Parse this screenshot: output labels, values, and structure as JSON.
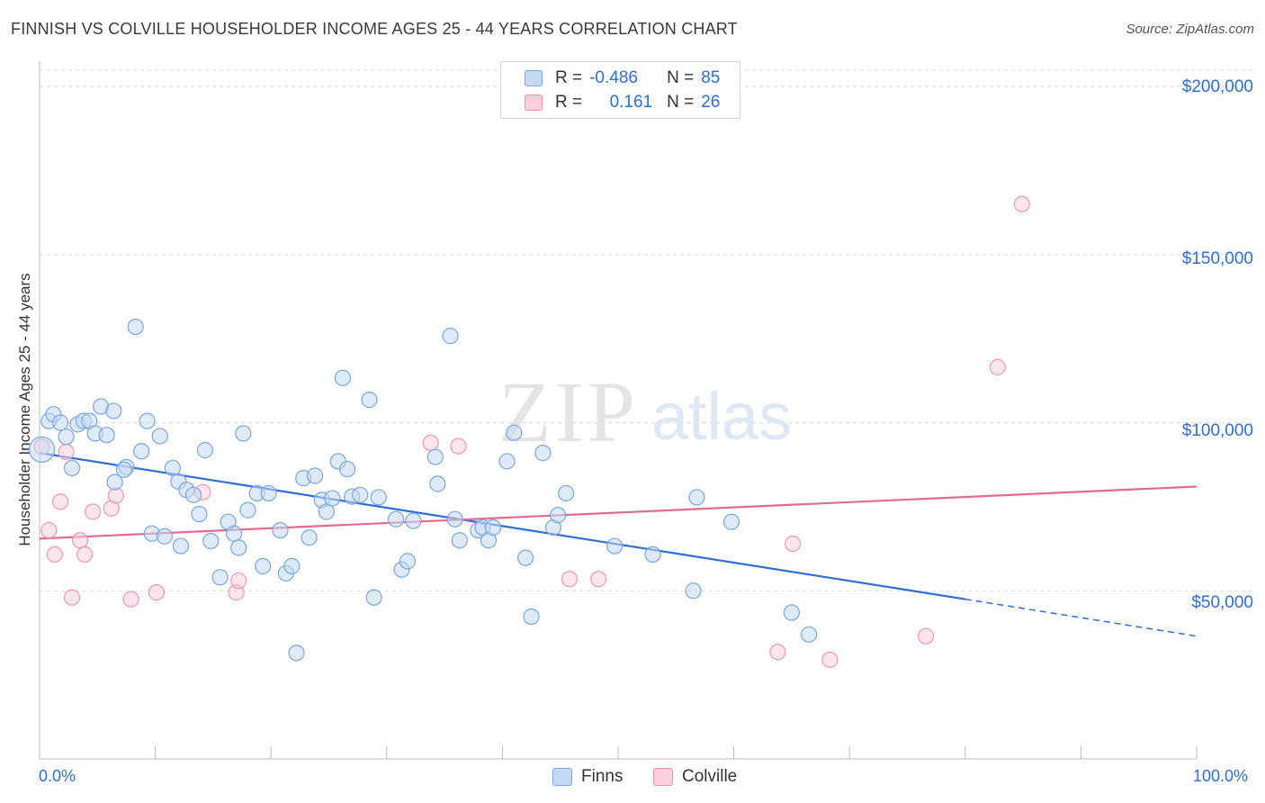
{
  "title": "FINNISH VS COLVILLE HOUSEHOLDER INCOME AGES 25 - 44 YEARS CORRELATION CHART",
  "source": "Source: ZipAtlas.com",
  "watermark": {
    "zip": "ZIP",
    "atlas": "atlas"
  },
  "legend": {
    "rows": [
      {
        "r_label": "R =",
        "r_value": "-0.486",
        "n_label": "N =",
        "n_value": "85"
      },
      {
        "r_label": "R =",
        "r_value": "0.161",
        "n_label": "N =",
        "n_value": "26"
      }
    ]
  },
  "chart_data": {
    "type": "scatter",
    "title": "FINNISH VS COLVILLE HOUSEHOLDER INCOME AGES 25 - 44 YEARS CORRELATION CHART",
    "xlabel": "",
    "ylabel": "Householder Income Ages 25 - 44 years",
    "xlim": [
      0,
      100
    ],
    "ylim": [
      0,
      200000
    ],
    "x_tick_labels": [
      "0.0%",
      "100.0%"
    ],
    "y_ticks": [
      50000,
      100000,
      150000,
      200000
    ],
    "y_tick_labels": [
      "$50,000",
      "$100,000",
      "$150,000",
      "$200,000"
    ],
    "grid": true,
    "legend_position": "top-center",
    "colors": {
      "finns": "#2f6ed4",
      "finns_fill": "#c5d9f4",
      "colville": "#e06b93",
      "colville_fill": "#fbd0dc"
    },
    "series": [
      {
        "name": "Finns",
        "r": -0.486,
        "n": 85,
        "trend": {
          "x0": 0,
          "y0": 91000,
          "x1": 80,
          "y1": 47500,
          "dashed_to_x": 100,
          "dashed_to_y": 36500
        },
        "points": [
          [
            0.2,
            92000
          ],
          [
            0.8,
            100500
          ],
          [
            1.2,
            102500
          ],
          [
            1.8,
            100000
          ],
          [
            2.3,
            95800
          ],
          [
            2.8,
            86500
          ],
          [
            3.3,
            99500
          ],
          [
            3.8,
            100500
          ],
          [
            4.3,
            100500
          ],
          [
            4.8,
            96800
          ],
          [
            5.3,
            104800
          ],
          [
            5.8,
            96300
          ],
          [
            6.4,
            103500
          ],
          [
            6.5,
            82300
          ],
          [
            7.5,
            86800
          ],
          [
            7.3,
            86000
          ],
          [
            8.3,
            128500
          ],
          [
            8.8,
            91500
          ],
          [
            9.3,
            100500
          ],
          [
            9.7,
            67000
          ],
          [
            10.4,
            96000
          ],
          [
            10.8,
            66200
          ],
          [
            11.5,
            86500
          ],
          [
            12.0,
            82500
          ],
          [
            12.2,
            63300
          ],
          [
            12.7,
            80000
          ],
          [
            13.3,
            78500
          ],
          [
            13.8,
            72800
          ],
          [
            14.3,
            91800
          ],
          [
            14.8,
            64800
          ],
          [
            15.6,
            54000
          ],
          [
            16.3,
            70500
          ],
          [
            16.8,
            67000
          ],
          [
            17.2,
            62800
          ],
          [
            17.6,
            96800
          ],
          [
            18.0,
            74000
          ],
          [
            18.8,
            79000
          ],
          [
            19.3,
            57300
          ],
          [
            19.8,
            79000
          ],
          [
            20.8,
            68000
          ],
          [
            21.3,
            55200
          ],
          [
            21.8,
            57300
          ],
          [
            22.8,
            83500
          ],
          [
            23.3,
            65800
          ],
          [
            23.8,
            84200
          ],
          [
            24.4,
            77000
          ],
          [
            24.8,
            73500
          ],
          [
            25.3,
            77500
          ],
          [
            25.8,
            88500
          ],
          [
            26.2,
            113300
          ],
          [
            26.6,
            86200
          ],
          [
            27.0,
            78000
          ],
          [
            27.7,
            78500
          ],
          [
            28.5,
            106800
          ],
          [
            28.9,
            48000
          ],
          [
            29.3,
            77800
          ],
          [
            30.8,
            71300
          ],
          [
            31.3,
            56300
          ],
          [
            31.8,
            58800
          ],
          [
            32.3,
            70800
          ],
          [
            34.2,
            89800
          ],
          [
            34.4,
            81800
          ],
          [
            35.5,
            125800
          ],
          [
            35.9,
            71300
          ],
          [
            36.3,
            65000
          ],
          [
            37.9,
            68000
          ],
          [
            38.3,
            68800
          ],
          [
            38.8,
            65000
          ],
          [
            39.2,
            68800
          ],
          [
            40.4,
            88500
          ],
          [
            41.0,
            97000
          ],
          [
            42.0,
            59800
          ],
          [
            42.5,
            42300
          ],
          [
            43.5,
            91000
          ],
          [
            44.4,
            68800
          ],
          [
            44.8,
            72500
          ],
          [
            45.5,
            79000
          ],
          [
            49.7,
            63300
          ],
          [
            53.0,
            60800
          ],
          [
            56.5,
            50000
          ],
          [
            56.8,
            77800
          ],
          [
            59.8,
            70500
          ],
          [
            65.0,
            43500
          ],
          [
            66.5,
            37000
          ],
          [
            22.2,
            31500
          ]
        ]
      },
      {
        "name": "Colville",
        "r": 0.161,
        "n": 26,
        "trend": {
          "x0": 0,
          "y0": 65500,
          "x1": 100,
          "y1": 81000
        },
        "points": [
          [
            0.2,
            92800
          ],
          [
            0.8,
            68000
          ],
          [
            1.3,
            60800
          ],
          [
            1.8,
            76500
          ],
          [
            2.3,
            91300
          ],
          [
            2.8,
            48000
          ],
          [
            3.5,
            65000
          ],
          [
            3.9,
            60800
          ],
          [
            4.6,
            73500
          ],
          [
            6.2,
            74500
          ],
          [
            6.6,
            78300
          ],
          [
            7.9,
            47500
          ],
          [
            10.1,
            49500
          ],
          [
            14.1,
            79300
          ],
          [
            17.0,
            49500
          ],
          [
            17.2,
            53000
          ],
          [
            33.8,
            94000
          ],
          [
            36.2,
            93000
          ],
          [
            45.8,
            53500
          ],
          [
            48.3,
            53500
          ],
          [
            63.8,
            31800
          ],
          [
            65.1,
            64000
          ],
          [
            68.3,
            29500
          ],
          [
            76.6,
            36500
          ],
          [
            82.8,
            116500
          ],
          [
            84.9,
            165000
          ]
        ]
      }
    ]
  },
  "bottom_legend": [
    "Finns",
    "Colville"
  ],
  "x_axis": {
    "min_label": "0.0%",
    "max_label": "100.0%"
  }
}
